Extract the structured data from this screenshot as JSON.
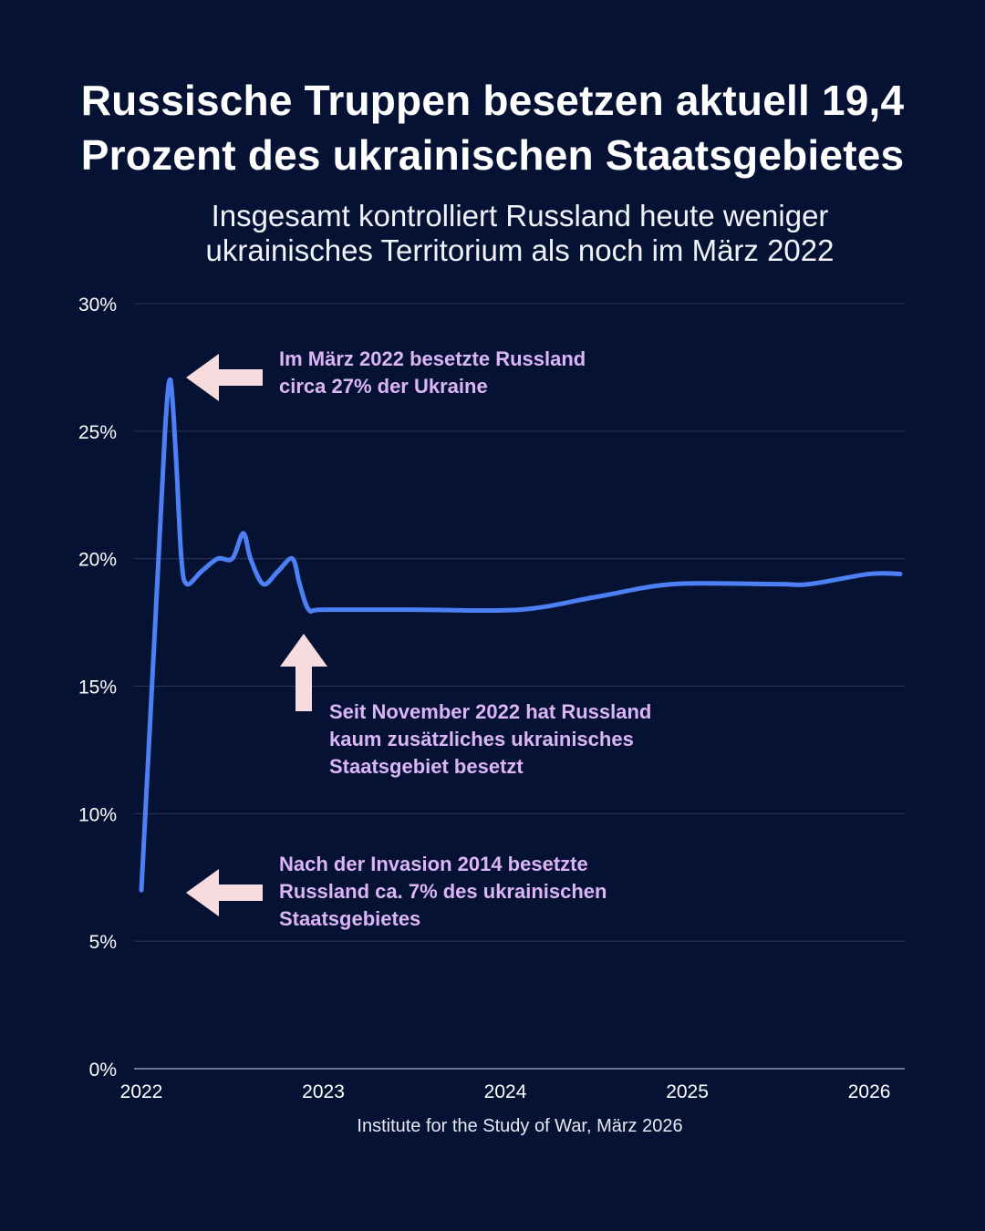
{
  "header": {
    "title_line1": "Russische Truppen besetzen aktuell 19,4",
    "title_line2": "Prozent des ukrainischen Staatsgebietes",
    "subtitle_line1": "Insgesamt kontrolliert Russland heute weniger",
    "subtitle_line2": "ukrainisches Territorium als noch im März 2022"
  },
  "annotations": {
    "peak_line1": "Im März 2022 besetzte Russland",
    "peak_line2": "circa 27% der Ukraine",
    "stable_line1": "Seit November 2022 hat Russland",
    "stable_line2": "kaum zusätzliches ukrainisches",
    "stable_line3": "Staatsgebiet besetzt",
    "invasion_line1": "Nach der Invasion 2014 besetzte",
    "invasion_line2": "Russland ca. 7% des ukrainischen",
    "invasion_line3": "Staatsgebietes"
  },
  "footer": {
    "source": "Institute for the Study of War, März 2026"
  },
  "colors": {
    "background": "#051233",
    "line": "#4d7ff5",
    "arrow": "#f7dcdf",
    "annotation_text": "#dcb5f7",
    "grid": "#2a3656"
  },
  "chart_data": {
    "type": "line",
    "title": "Russische Truppen besetzen aktuell 19,4 Prozent des ukrainischen Staatsgebietes",
    "subtitle": "Insgesamt kontrolliert Russland heute weniger ukrainisches Territorium als noch im März 2022",
    "xlabel": "",
    "ylabel": "",
    "xlim": [
      2022,
      2026.17
    ],
    "ylim": [
      0,
      30
    ],
    "x_ticks": [
      "2022",
      "2023",
      "2024",
      "2025",
      "2026"
    ],
    "x_tick_values": [
      2022,
      2023,
      2024,
      2025,
      2026
    ],
    "y_ticks": [
      "0%",
      "5%",
      "10%",
      "15%",
      "20%",
      "25%",
      "30%"
    ],
    "y_tick_values": [
      0,
      5,
      10,
      15,
      20,
      25,
      30
    ],
    "grid": "horizontal",
    "legend": "none",
    "series": [
      {
        "x": [
          2022.0,
          2022.08,
          2022.13,
          2022.16,
          2022.19,
          2022.22,
          2022.25,
          2022.33,
          2022.42,
          2022.5,
          2022.56,
          2022.6,
          2022.67,
          2022.75,
          2022.83,
          2022.87,
          2022.92,
          2023.0,
          2023.5,
          2024.08,
          2024.5,
          2024.92,
          2025.5,
          2025.67,
          2026.0,
          2026.17
        ],
        "values": [
          7.0,
          18.0,
          25.0,
          27.0,
          24.0,
          20.0,
          19.0,
          19.5,
          20.0,
          20.0,
          21.0,
          20.0,
          19.0,
          19.5,
          20.0,
          19.0,
          18.0,
          18.0,
          18.0,
          18.0,
          18.5,
          19.0,
          19.0,
          19.0,
          19.4,
          19.4
        ]
      }
    ]
  }
}
